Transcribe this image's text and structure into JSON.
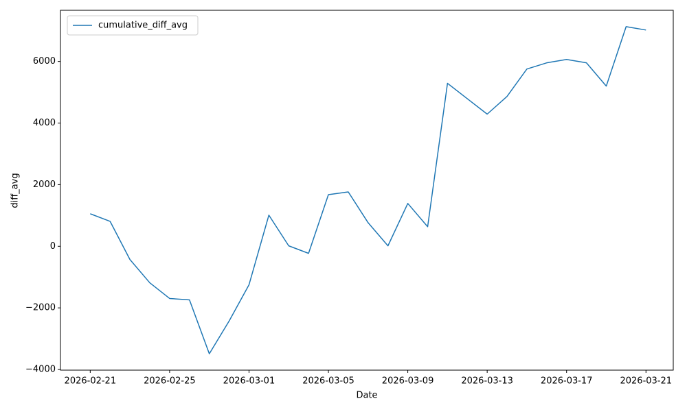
{
  "chart_data": {
    "type": "line",
    "x_label": "Date",
    "y_label": "diff_avg",
    "x": [
      "2026-02-21",
      "2026-02-22",
      "2026-02-23",
      "2026-02-24",
      "2026-02-25",
      "2026-02-26",
      "2026-02-27",
      "2026-02-28",
      "2026-03-01",
      "2026-03-02",
      "2026-03-03",
      "2026-03-04",
      "2026-03-05",
      "2026-03-06",
      "2026-03-07",
      "2026-03-08",
      "2026-03-09",
      "2026-03-10",
      "2026-03-11",
      "2026-03-12",
      "2026-03-13",
      "2026-03-14",
      "2026-03-15",
      "2026-03-16",
      "2026-03-17",
      "2026-03-18",
      "2026-03-19",
      "2026-03-20",
      "2026-03-21"
    ],
    "series": [
      {
        "name": "cumulative_diff_avg",
        "color": "#1f77b4",
        "values": [
          1055,
          810,
          -430,
          -1185,
          -1695,
          -1740,
          -3490,
          -2425,
          -1250,
          1010,
          15,
          -230,
          1675,
          1765,
          765,
          15,
          1390,
          635,
          5290,
          4790,
          4290,
          4865,
          5755,
          5955,
          6065,
          5955,
          5200,
          7130,
          7020
        ]
      }
    ],
    "xlim": [
      "2026-02-19T12:00",
      "2026-03-22T09:00"
    ],
    "xticks": [
      "2026-02-21",
      "2026-02-25",
      "2026-03-01",
      "2026-03-05",
      "2026-03-09",
      "2026-03-13",
      "2026-03-17",
      "2026-03-21"
    ],
    "ylim": [
      -4021,
      7661
    ],
    "yticks": [
      {
        "value": -4000,
        "label": "−4000"
      },
      {
        "value": -2000,
        "label": "−2000"
      },
      0,
      2000,
      4000,
      6000
    ],
    "grid": false,
    "legend": "upper left"
  }
}
